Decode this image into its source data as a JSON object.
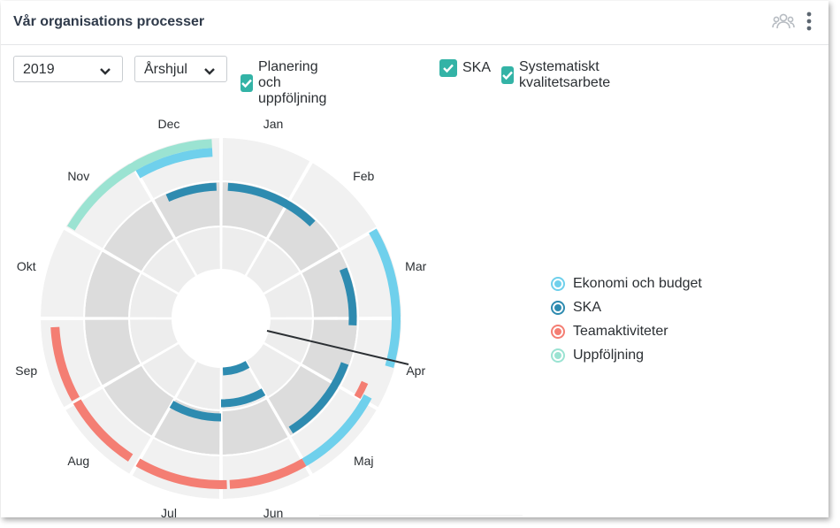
{
  "header": {
    "title": "Vår organisations processer",
    "icons": [
      "group-icon",
      "more-vertical-icon"
    ]
  },
  "toolbar": {
    "year_select": {
      "value": "2019"
    },
    "view_select": {
      "value": "Årshjul"
    },
    "checkboxes": [
      {
        "label": "Planering och uppföljning",
        "checked": true
      },
      {
        "label": "SKA",
        "checked": true
      },
      {
        "label": "Systematiskt kvalitetsarbete",
        "checked": true
      }
    ]
  },
  "wheel": {
    "months": [
      "Jan",
      "Feb",
      "Mar",
      "Apr",
      "Maj",
      "Jun",
      "Jul",
      "Aug",
      "Sep",
      "Okt",
      "Nov",
      "Dec"
    ],
    "pointer_month": "Apr"
  },
  "legend": {
    "items": [
      {
        "label": "Ekonomi och budget",
        "color": "#6fd0ec"
      },
      {
        "label": "SKA",
        "color": "#2e8bb0"
      },
      {
        "label": "Teamaktiviteter",
        "color": "#f47e73"
      },
      {
        "label": "Uppföljning",
        "color": "#9be3d2"
      }
    ]
  },
  "colors": {
    "accent": "#33b3a6",
    "ring_light": "#f1f1f1",
    "ring_mid": "#dcdcdc",
    "ring_inner": "#ededed"
  }
}
